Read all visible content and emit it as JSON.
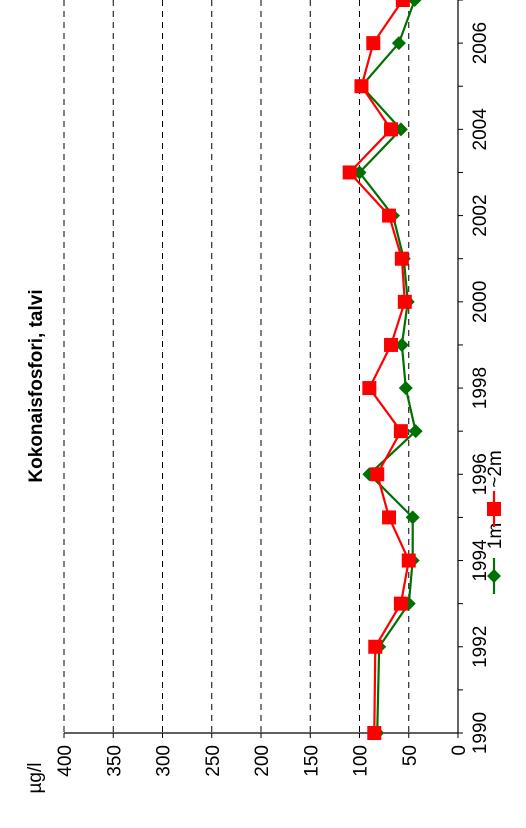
{
  "chart_data": {
    "type": "line",
    "title": "Kokonaisfosfori, talvi",
    "ylabel": "µg/l",
    "xlabel": "",
    "xlim": [
      1990,
      2007
    ],
    "ylim": [
      0,
      400
    ],
    "x_ticks": [
      "1990",
      "1992",
      "1994",
      "1996",
      "1998",
      "2000",
      "2002",
      "2004",
      "2006"
    ],
    "y_ticks": [
      "0",
      "50",
      "100",
      "150",
      "200",
      "250",
      "300",
      "350",
      "400"
    ],
    "grid": "dashed horizontal",
    "legend_position": "bottom",
    "series": [
      {
        "name": "1m",
        "color": "#007000",
        "marker": "diamond",
        "points": [
          [
            1990,
            82
          ],
          [
            1992,
            80
          ],
          [
            1993,
            50
          ],
          [
            1994,
            46
          ],
          [
            1995,
            46
          ],
          [
            1996,
            90
          ],
          [
            1997,
            43
          ],
          [
            1998,
            53
          ],
          [
            1999,
            57
          ],
          [
            2000,
            51
          ],
          [
            2001,
            55
          ],
          [
            2002,
            66
          ],
          [
            2003,
            100
          ],
          [
            2004,
            58
          ],
          [
            2005,
            98
          ],
          [
            2006,
            60
          ],
          [
            2007,
            44
          ]
        ]
      },
      {
        "name": "~2m",
        "color": "#ff0000",
        "marker": "square",
        "points": [
          [
            1990,
            85
          ],
          [
            1992,
            84
          ],
          [
            1993,
            58
          ],
          [
            1994,
            50
          ],
          [
            1995,
            70
          ],
          [
            1996,
            82
          ],
          [
            1997,
            58
          ],
          [
            1998,
            90
          ],
          [
            1999,
            68
          ],
          [
            2000,
            54
          ],
          [
            2001,
            57
          ],
          [
            2002,
            70
          ],
          [
            2003,
            110
          ],
          [
            2004,
            68
          ],
          [
            2005,
            98
          ],
          [
            2006,
            86
          ],
          [
            2007,
            56
          ]
        ]
      }
    ]
  }
}
